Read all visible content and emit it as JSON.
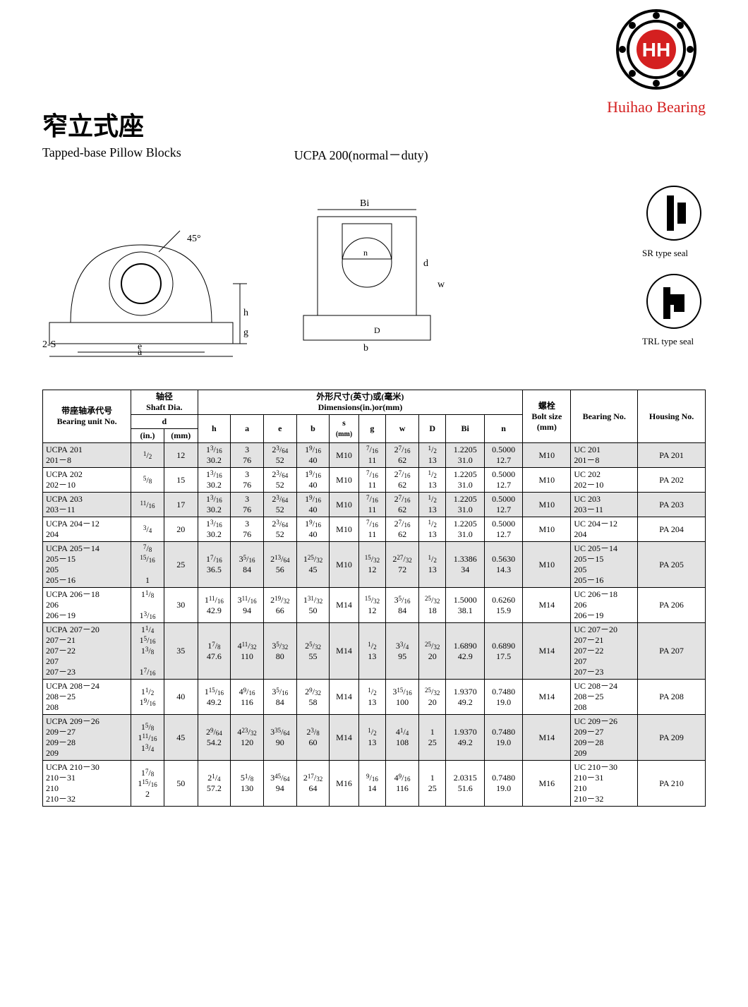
{
  "brand": {
    "name": "Huihao Bearing",
    "logo_text": "HH",
    "logo_color": "#d42020"
  },
  "title_cn": "窄立式座",
  "subtitle_en": "Tapped-base Pillow Blocks",
  "model_line": "UCPA 200(normal－duty)",
  "seals": {
    "sr": "SR type seal",
    "trl": "TRL type seal"
  },
  "diagram_labels": [
    "Bi",
    "45°",
    "h",
    "g",
    "e",
    "a",
    "2-S",
    "n",
    "d",
    "w",
    "b",
    "D"
  ],
  "table_headers": {
    "bearing_unit_cn": "带座轴承代号",
    "bearing_unit_en": "Bearing unit No.",
    "shaft_dia_cn": "轴径",
    "shaft_dia_en": "Shaft Dia.",
    "d": "d",
    "in": "(in.)",
    "mm": "(mm)",
    "dims_cn": "外形尺寸(英寸)或(毫米)",
    "dims_en": "Dimensions(in.)or(mm)",
    "h": "h",
    "a": "a",
    "e": "e",
    "b": "b",
    "s": "s",
    "s_unit": "(mm)",
    "g": "g",
    "w": "w",
    "D_col": "D",
    "Bi": "Bi",
    "n": "n",
    "bolt_cn": "螺栓",
    "bolt_en": "Bolt size",
    "bolt_unit": "(mm)",
    "bearing_no": "Bearing No.",
    "housing_no": "Housing No."
  },
  "rows": [
    {
      "unit": "UCPA 201\n201－8",
      "d_in": "1/2",
      "d_mm": "12",
      "h": "1|3/16\n30.2",
      "a": "3\n76",
      "e": "2|3/64\n52",
      "b": "1|9/16\n40",
      "s": "M10",
      "g": "7/16\n11",
      "w": "2|7/16\n62",
      "D": "1/2\n13",
      "Bi": "1.2205\n31.0",
      "n": "0.5000\n12.7",
      "bolt": "M10",
      "bearing": "UC 201\n201－8",
      "housing": "PA 201",
      "shade": true
    },
    {
      "unit": "UCPA 202\n202－10",
      "d_in": "5/8",
      "d_mm": "15",
      "h": "1|3/16\n30.2",
      "a": "3\n76",
      "e": "2|3/64\n52",
      "b": "1|9/16\n40",
      "s": "M10",
      "g": "7/16\n11",
      "w": "2|7/16\n62",
      "D": "1/2\n13",
      "Bi": "1.2205\n31.0",
      "n": "0.5000\n12.7",
      "bolt": "M10",
      "bearing": "UC 202\n202－10",
      "housing": "PA 202",
      "shade": false
    },
    {
      "unit": "UCPA 203\n203－11",
      "d_in": "11/16",
      "d_mm": "17",
      "h": "1|3/16\n30.2",
      "a": "3\n76",
      "e": "2|3/64\n52",
      "b": "1|9/16\n40",
      "s": "M10",
      "g": "7/16\n11",
      "w": "2|7/16\n62",
      "D": "1/2\n13",
      "Bi": "1.2205\n31.0",
      "n": "0.5000\n12.7",
      "bolt": "M10",
      "bearing": "UC 203\n203－11",
      "housing": "PA 203",
      "shade": true
    },
    {
      "unit": "UCPA 204－12\n204",
      "d_in": "3/4",
      "d_mm": "20",
      "h": "1|3/16\n30.2",
      "a": "3\n76",
      "e": "2|3/64\n52",
      "b": "1|9/16\n40",
      "s": "M10",
      "g": "7/16\n11",
      "w": "2|7/16\n62",
      "D": "1/2\n13",
      "Bi": "1.2205\n31.0",
      "n": "0.5000\n12.7",
      "bolt": "M10",
      "bearing": "UC 204－12\n204",
      "housing": "PA 204",
      "shade": false
    },
    {
      "unit": "UCPA 205－14\n205－15\n205\n205－16",
      "d_in": "7/8\n15/16\n\n1",
      "d_mm": "25",
      "h": "1|7/16\n36.5",
      "a": "3|5/16\n84",
      "e": "2|13/64\n56",
      "b": "1|25/32\n45",
      "s": "M10",
      "g": "15/32\n12",
      "w": "2|27/32\n72",
      "D": "1/2\n13",
      "Bi": "1.3386\n34",
      "n": "0.5630\n14.3",
      "bolt": "M10",
      "bearing": "UC 205－14\n205－15\n205\n205－16",
      "housing": "PA 205",
      "shade": true
    },
    {
      "unit": "UCPA 206－18\n206\n206－19",
      "d_in": "1|1/8\n\n1|3/16",
      "d_mm": "30",
      "h": "1|11/16\n42.9",
      "a": "3|11/16\n94",
      "e": "2|19/32\n66",
      "b": "1|31/32\n50",
      "s": "M14",
      "g": "15/32\n12",
      "w": "3|5/16\n84",
      "D": "25/32\n18",
      "Bi": "1.5000\n38.1",
      "n": "0.6260\n15.9",
      "bolt": "M14",
      "bearing": "UC 206－18\n206\n206－19",
      "housing": "PA 206",
      "shade": false
    },
    {
      "unit": "UCPA 207－20\n207－21\n207－22\n207\n207－23",
      "d_in": "1|1/4\n1|5/16\n1|3/8\n\n1|7/16",
      "d_mm": "35",
      "h": "1|7/8\n47.6",
      "a": "4|11/32\n110",
      "e": "3|5/32\n80",
      "b": "2|5/32\n55",
      "s": "M14",
      "g": "1/2\n13",
      "w": "3|3/4\n95",
      "D": "25/32\n20",
      "Bi": "1.6890\n42.9",
      "n": "0.6890\n17.5",
      "bolt": "M14",
      "bearing": "UC 207－20\n207－21\n207－22\n207\n207－23",
      "housing": "PA 207",
      "shade": true
    },
    {
      "unit": "UCPA 208－24\n208－25\n208",
      "d_in": "1|1/2\n1|9/16",
      "d_mm": "40",
      "h": "1|15/16\n49.2",
      "a": "4|9/16\n116",
      "e": "3|5/16\n84",
      "b": "2|9/32\n58",
      "s": "M14",
      "g": "1/2\n13",
      "w": "3|15/16\n100",
      "D": "25/32\n20",
      "Bi": "1.9370\n49.2",
      "n": "0.7480\n19.0",
      "bolt": "M14",
      "bearing": "UC 208－24\n208－25\n208",
      "housing": "PA 208",
      "shade": false
    },
    {
      "unit": "UCPA 209－26\n209－27\n209－28\n209",
      "d_in": "1|5/8\n1|11/16\n1|3/4",
      "d_mm": "45",
      "h": "2|9/64\n54.2",
      "a": "4|23/32\n120",
      "e": "3|35/64\n90",
      "b": "2|3/8\n60",
      "s": "M14",
      "g": "1/2\n13",
      "w": "4|1/4\n108",
      "D": "1\n25",
      "Bi": "1.9370\n49.2",
      "n": "0.7480\n19.0",
      "bolt": "M14",
      "bearing": "UC 209－26\n209－27\n209－28\n209",
      "housing": "PA 209",
      "shade": true
    },
    {
      "unit": "UCPA 210－30\n210－31\n210\n210－32",
      "d_in": "1|7/8\n1|15/16\n2",
      "d_mm": "50",
      "h": "2|1/4\n57.2",
      "a": "5|1/8\n130",
      "e": "3|45/64\n94",
      "b": "2|17/32\n64",
      "s": "M16",
      "g": "9/16\n14",
      "w": "4|9/16\n116",
      "D": "1\n25",
      "Bi": "2.0315\n51.6",
      "n": "0.7480\n19.0",
      "bolt": "M16",
      "bearing": "UC 210－30\n210－31\n210\n210－32",
      "housing": "PA 210",
      "shade": false
    }
  ],
  "colors": {
    "shade": "#e3e3e3",
    "border": "#000000",
    "brand": "#d42020",
    "background": "#ffffff"
  },
  "typography": {
    "body_font": "Times New Roman",
    "title_cn_size": 36,
    "subtitle_size": 18,
    "table_size": 12
  }
}
